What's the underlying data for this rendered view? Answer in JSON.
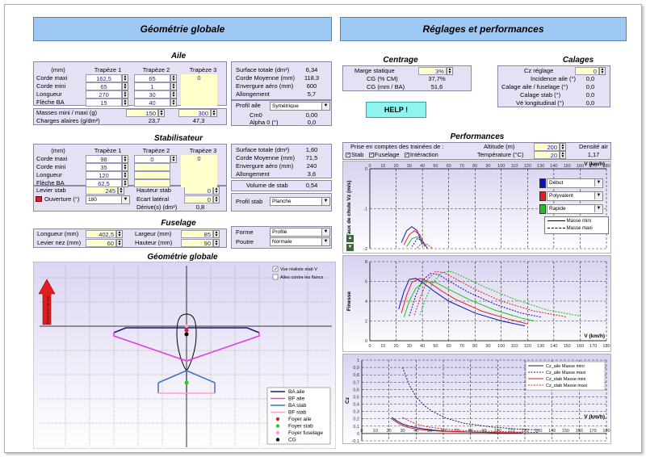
{
  "banners": {
    "left": "Géométrie globale",
    "right": "Réglages et performances"
  },
  "aile": {
    "title": "Aile",
    "headers": [
      "(mm)",
      "Trapèze 1",
      "Trapèze 2",
      "Trapèze 3"
    ],
    "rows": [
      {
        "label": "Corde maxi",
        "t1": "162,5",
        "t2": "65",
        "t3": "0"
      },
      {
        "label": "Corde mini",
        "t1": "65",
        "t2": "1",
        "t3": ""
      },
      {
        "label": "Longueur",
        "t1": "270",
        "t2": "30",
        "t3": ""
      },
      {
        "label": "Flèche BA",
        "t1": "15",
        "t2": "40",
        "t3": ""
      }
    ],
    "masses_label": "Masses mini / maxi  (g)",
    "masse_mini": "150",
    "masse_maxi": "300",
    "charges_label": "Charges alaires (g/dm²)",
    "charge_mini": "23,7",
    "charge_maxi": "47,3",
    "stats": [
      {
        "label": "Surface totale (dm²)",
        "value": "6,34"
      },
      {
        "label": "Corde Moyenne (mm)",
        "value": "118,3"
      },
      {
        "label": "Envergure aéro (mm)",
        "value": "600"
      },
      {
        "label": "Allongement",
        "value": "5,7"
      }
    ],
    "profil_label": "Profil aile",
    "profil_value": "Symétrique",
    "cm0_label": "Cm0",
    "cm0_value": "0,00",
    "alpha0_label": "Alpha 0 (°)",
    "alpha0_value": "0,0"
  },
  "stab": {
    "title": "Stabilisateur",
    "headers": [
      "(mm)",
      "Trapèze 1",
      "Trapèze 2",
      "Trapèze 3"
    ],
    "rows": [
      {
        "label": "Corde maxi",
        "t1": "98",
        "t2": "0",
        "t3": "0"
      },
      {
        "label": "Corde mini",
        "t1": "35",
        "t2": "",
        "t3": ""
      },
      {
        "label": "Longueur",
        "t1": "120",
        "t2": "",
        "t3": ""
      },
      {
        "label": "Flèche BA",
        "t1": "62,5",
        "t2": "",
        "t3": ""
      }
    ],
    "levier_label": "Levier stab",
    "levier_value": "245",
    "hauteur_label": "Hauteur stab",
    "hauteur_value": "0",
    "ouverture_label": "Ouverture (°)",
    "ouverture_value": "180",
    "ecart_label": "Ecart latéral",
    "ecart_value": "0",
    "derives_label": "Dérive(s) (dm²)",
    "derives_value": "0,8",
    "stats": [
      {
        "label": "Surface totale (dm²)",
        "value": "1,60"
      },
      {
        "label": "Corde Moyenne (mm)",
        "value": "71,5"
      },
      {
        "label": "Envergure aéro (mm)",
        "value": "240"
      },
      {
        "label": "Allongement",
        "value": "3,6"
      }
    ],
    "volume_label": "Volume de stab",
    "volume_value": "0,54",
    "profil_label": "Profil stab",
    "profil_value": "Planche"
  },
  "fuselage": {
    "title": "Fuselage",
    "longueur_label": "Longueur (mm)",
    "longueur_value": "402,5",
    "largeur_label": "Largeur (mm)",
    "largeur_value": "85",
    "levier_nez_label": "Levier nez (mm)",
    "levier_nez_value": "60",
    "hauteur_label": "Hauteur (mm)",
    "hauteur_value": "90",
    "forme_label": "Forme",
    "forme_value": "Profilé",
    "poutre_label": "Poutre",
    "poutre_value": "Normale"
  },
  "geometry": {
    "title": "Géométrie globale",
    "check1": "Vue réaliste stab V",
    "check2": "Ailes contre les flancs",
    "direction_label": "Direction de vol",
    "legend": [
      "BA aile",
      "BF aile",
      "BA stab",
      "BF stab",
      "Foyer aile",
      "Foyer stab",
      "Foyer fuselage",
      "CG"
    ],
    "legend_colors": [
      "#1a1a6e",
      "#e040e0",
      "#3a70d0",
      "#ff9ec8",
      "#e02020",
      "#20d020",
      "#ff9ec8",
      "#000000"
    ]
  },
  "centrage": {
    "title": "Centrage",
    "rows": [
      {
        "label": "Marge statique",
        "value": "3%"
      },
      {
        "label": "CG (% CM)",
        "value": "37,7%"
      },
      {
        "label": "CG (mm / BA)",
        "value": "51,6"
      }
    ]
  },
  "help_label": "HELP !",
  "calages": {
    "title": "Calages",
    "rows": [
      {
        "label": "Cz réglage",
        "value": "0"
      },
      {
        "label": "Incidence aile (°)",
        "value": "0,0"
      },
      {
        "label": "Calage aile / fuselage (°)",
        "value": "0,0"
      },
      {
        "label": "Calage stab (°)",
        "value": "0,0"
      },
      {
        "label": "Vé longitudinal (°)",
        "value": "0,0"
      }
    ]
  },
  "performances": {
    "title": "Performances",
    "prise_label": "Prise en comptes des trainées de :",
    "checks": [
      "Stab",
      "Fuselage",
      "Intéraction"
    ],
    "altitude_label": "Altitude (m)",
    "altitude_value": "200",
    "temperature_label": "Température (°C)",
    "temperature_value": "20",
    "densite_label": "Densité air",
    "densite_value": "1,17",
    "dropdowns": [
      "Début",
      "Polyvalent",
      "Rapide"
    ],
    "dropdown_colors": [
      "#1010c0",
      "#e02020",
      "#20c020"
    ],
    "masse_legend": [
      "Masse mini",
      "Masse maxi"
    ]
  },
  "chart_data": [
    {
      "type": "line",
      "ylabel": "Taux de chute Vz (m/s)",
      "xlabel": "V (km/h)",
      "x_ticks": [
        0,
        10,
        20,
        30,
        40,
        50,
        60,
        70,
        80,
        90,
        100,
        110,
        120,
        130,
        140,
        150,
        160,
        170,
        180
      ],
      "y_ticks": [
        0,
        -1,
        -2
      ],
      "xlim": [
        0,
        180
      ],
      "ylim": [
        -2,
        0
      ],
      "series": [
        {
          "color": "#1010c0",
          "dash": false,
          "x": [
            24,
            28,
            32,
            36,
            40
          ],
          "y": [
            -1.85,
            -1.55,
            -1.45,
            -1.55,
            -1.9
          ]
        },
        {
          "color": "#e02020",
          "dash": false,
          "x": [
            26,
            30,
            34,
            38,
            42
          ],
          "y": [
            -1.9,
            -1.65,
            -1.55,
            -1.65,
            -1.95
          ]
        },
        {
          "color": "#20c020",
          "dash": false,
          "x": [
            28,
            32,
            36,
            40,
            44
          ],
          "y": [
            -1.95,
            -1.75,
            -1.7,
            -1.8,
            -2.0
          ]
        },
        {
          "color": "#1010c0",
          "dash": true,
          "x": [
            32,
            36,
            40,
            44
          ],
          "y": [
            -1.95,
            -1.75,
            -1.8,
            -2.0
          ]
        },
        {
          "color": "#e02020",
          "dash": true,
          "x": [
            36,
            40,
            44,
            48
          ],
          "y": [
            -1.98,
            -1.85,
            -1.9,
            -2.0
          ]
        }
      ]
    },
    {
      "type": "line",
      "ylabel": "Finesse",
      "xlabel": "V (km/h)",
      "x_ticks": [
        0,
        10,
        20,
        30,
        40,
        50,
        60,
        70,
        80,
        90,
        100,
        110,
        120,
        130,
        140,
        150,
        160,
        170,
        180
      ],
      "y_ticks": [
        0,
        2,
        4,
        6,
        8
      ],
      "xlim": [
        0,
        180
      ],
      "ylim": [
        0,
        8
      ],
      "series": [
        {
          "color": "#1010c0",
          "dash": false,
          "x": [
            22,
            26,
            30,
            35,
            40,
            50,
            60,
            80,
            100,
            118
          ],
          "y": [
            3.2,
            5.0,
            6.2,
            6.3,
            5.9,
            4.9,
            4.0,
            2.8,
            2.0,
            1.5
          ]
        },
        {
          "color": "#e02020",
          "dash": false,
          "x": [
            24,
            28,
            32,
            38,
            44,
            55,
            65,
            85,
            105,
            120
          ],
          "y": [
            2.8,
            4.6,
            5.9,
            6.3,
            6.0,
            5.0,
            4.2,
            3.0,
            2.2,
            1.7
          ]
        },
        {
          "color": "#20c020",
          "dash": false,
          "x": [
            26,
            30,
            35,
            42,
            50,
            60,
            75,
            95,
            115,
            125
          ],
          "y": [
            2.4,
            4.0,
            5.3,
            6.0,
            5.9,
            5.2,
            4.2,
            3.1,
            2.3,
            2.0
          ]
        },
        {
          "color": "#1010c0",
          "dash": true,
          "x": [
            30,
            35,
            40,
            46,
            52,
            62,
            75,
            95,
            115,
            130
          ],
          "y": [
            2.5,
            4.6,
            6.1,
            6.8,
            6.7,
            5.9,
            4.9,
            3.7,
            2.8,
            2.4
          ]
        },
        {
          "color": "#e02020",
          "dash": true,
          "x": [
            34,
            39,
            44,
            50,
            56,
            66,
            80,
            100,
            125,
            150
          ],
          "y": [
            2.6,
            4.6,
            6.2,
            7.0,
            6.9,
            6.2,
            5.2,
            4.0,
            3.0,
            2.4
          ]
        },
        {
          "color": "#20c020",
          "dash": true,
          "x": [
            38,
            43,
            48,
            55,
            62,
            72,
            88,
            110,
            135,
            160
          ],
          "y": [
            2.6,
            4.4,
            5.9,
            6.9,
            7.0,
            6.4,
            5.4,
            4.2,
            3.1,
            2.5
          ]
        }
      ]
    },
    {
      "type": "line",
      "ylabel": "Cz",
      "xlabel": "V (km/h)",
      "x_ticks": [
        0,
        10,
        20,
        30,
        40,
        50,
        60,
        70,
        80,
        90,
        100,
        110,
        120,
        130,
        140,
        150,
        160,
        170,
        180
      ],
      "y_ticks": [
        -0.1,
        0,
        0.1,
        0.2,
        0.3,
        0.4,
        0.5,
        0.6,
        0.7,
        0.8,
        0.9,
        1.0
      ],
      "xlim": [
        0,
        180
      ],
      "ylim": [
        -0.1,
        1.0
      ],
      "legend": [
        "Cz_aile Masse mini",
        "Cz_aile Masse maxi",
        "Cz_stab Masse mini",
        "Cz_stab Masse maxi"
      ],
      "series": [
        {
          "name": "Cz_aile Masse mini",
          "color": "#1a1a6e",
          "dash": false,
          "x": [
            22,
            26,
            30,
            35,
            40,
            50,
            60,
            80,
            100,
            118
          ],
          "y": [
            0.22,
            0.17,
            0.13,
            0.1,
            0.08,
            0.05,
            0.035,
            0.02,
            0.013,
            0.009
          ]
        },
        {
          "name": "Cz_aile Masse maxi",
          "color": "#1a1a6e",
          "dash": true,
          "x": [
            30,
            35,
            40,
            46,
            52,
            62,
            75,
            95,
            115,
            130
          ],
          "y": [
            0.9,
            0.66,
            0.5,
            0.38,
            0.3,
            0.21,
            0.14,
            0.09,
            0.06,
            0.05
          ]
        },
        {
          "name": "Cz_stab Masse mini",
          "color": "#d02020",
          "dash": false,
          "x": [
            22,
            26,
            30,
            35,
            40,
            50,
            60,
            80,
            100,
            118
          ],
          "y": [
            0.2,
            0.15,
            0.11,
            0.08,
            0.06,
            0.04,
            0.03,
            0.02,
            0.01,
            0.008
          ]
        },
        {
          "name": "Cz_stab Masse maxi",
          "color": "#d02020",
          "dash": true,
          "x": [
            30,
            35,
            40,
            46,
            52,
            62,
            75,
            95,
            115,
            130
          ],
          "y": [
            0.22,
            0.17,
            0.13,
            0.1,
            0.08,
            0.06,
            0.04,
            0.03,
            0.02,
            0.015
          ]
        }
      ]
    }
  ]
}
